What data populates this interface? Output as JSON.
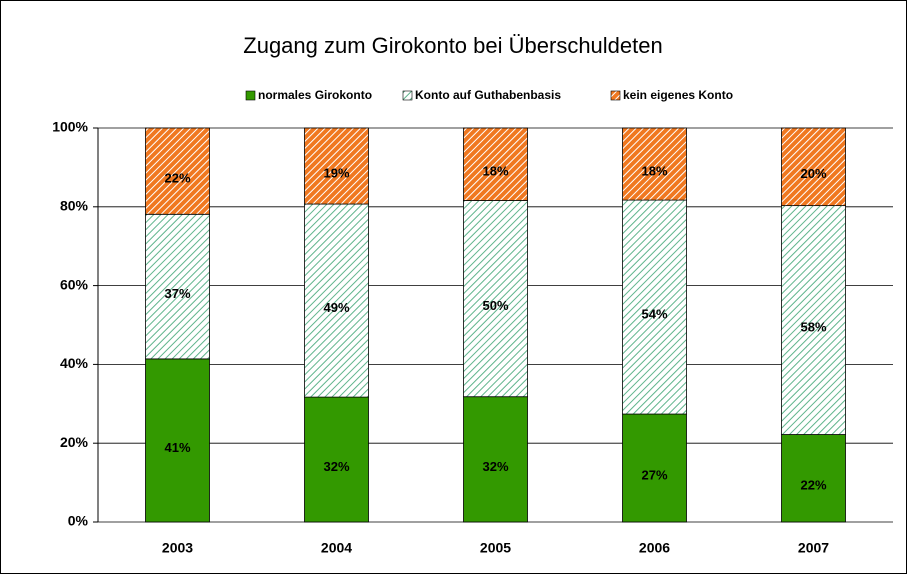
{
  "chart_data": {
    "type": "stacked_bar",
    "title": "Zugang zum Girokonto bei Überschuldeten",
    "categories": [
      "2003",
      "2004",
      "2005",
      "2006",
      "2007"
    ],
    "series": [
      {
        "name": "normales Girokonto",
        "color": "#339900",
        "hatch": false,
        "values": [
          41.4,
          31.7,
          31.8,
          27.4,
          22.2
        ],
        "value_labels": [
          "41%",
          "32%",
          "32%",
          "27%",
          "22%"
        ]
      },
      {
        "name": "Konto auf Guthabenbasis",
        "color": "#5fb48c",
        "hatch": true,
        "values": [
          36.7,
          49.0,
          49.8,
          54.3,
          58.1
        ],
        "value_labels": [
          "37%",
          "49%",
          "50%",
          "54%",
          "58%"
        ]
      },
      {
        "name": "kein eigenes Konto",
        "color": "#f07820",
        "hatch": true,
        "values": [
          21.9,
          19.3,
          18.4,
          18.3,
          19.7
        ],
        "value_labels": [
          "22%",
          "19%",
          "18%",
          "18%",
          "20%"
        ]
      }
    ],
    "ylim": [
      0,
      100
    ],
    "yticks": [
      {
        "value": 0,
        "label": "0%"
      },
      {
        "value": 20,
        "label": "20%"
      },
      {
        "value": 40,
        "label": "40%"
      },
      {
        "value": 60,
        "label": "60%"
      },
      {
        "value": 80,
        "label": "80%"
      },
      {
        "value": 100,
        "label": "100%"
      }
    ],
    "grid": true
  }
}
